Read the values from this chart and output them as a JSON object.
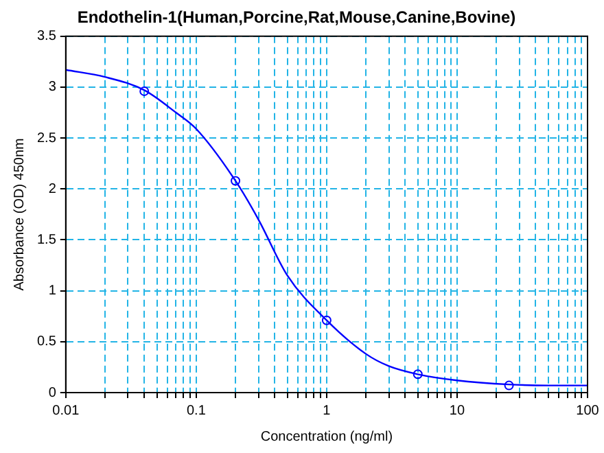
{
  "chart_data": {
    "type": "scatter",
    "title": "Endothelin-1(Human,Porcine,Rat,Mouse,Canine,Bovine)",
    "xlabel": "Concentration (ng/ml)",
    "ylabel": "Absorbance (OD) 450nm",
    "log": "x",
    "grid": true,
    "legend": false,
    "marker": "circle",
    "xlim": [
      0.01,
      100
    ],
    "xticks": [
      0.01,
      {
        "value": 0.02,
        "label": null
      },
      {
        "value": 0.03,
        "label": null
      },
      {
        "value": 0.04,
        "label": null
      },
      {
        "value": 0.05,
        "label": null
      },
      {
        "value": 0.06,
        "label": null
      },
      {
        "value": 0.07,
        "label": null
      },
      {
        "value": 0.08,
        "label": null
      },
      {
        "value": 0.09,
        "label": null
      },
      0.1,
      {
        "value": 0.2,
        "label": null
      },
      {
        "value": 0.3,
        "label": null
      },
      {
        "value": 0.4,
        "label": null
      },
      {
        "value": 0.5,
        "label": null
      },
      {
        "value": 0.6,
        "label": null
      },
      {
        "value": 0.7,
        "label": null
      },
      {
        "value": 0.8,
        "label": null
      },
      {
        "value": 0.9,
        "label": null
      },
      1,
      {
        "value": 2,
        "label": null
      },
      {
        "value": 3,
        "label": null
      },
      {
        "value": 4,
        "label": null
      },
      {
        "value": 5,
        "label": null
      },
      {
        "value": 6,
        "label": null
      },
      {
        "value": 7,
        "label": null
      },
      {
        "value": 8,
        "label": null
      },
      {
        "value": 9,
        "label": null
      },
      10,
      {
        "value": 20,
        "label": null
      },
      {
        "value": 30,
        "label": null
      },
      {
        "value": 40,
        "label": null
      },
      {
        "value": 50,
        "label": null
      },
      {
        "value": 60,
        "label": null
      },
      {
        "value": 70,
        "label": null
      },
      {
        "value": 80,
        "label": null
      },
      {
        "value": 90,
        "label": null
      },
      100
    ],
    "ylim": [
      0,
      3.5
    ],
    "yticks": [
      0,
      0.5,
      1,
      1.5,
      2,
      2.5,
      3,
      3.5
    ],
    "series": [
      {
        "type": "line",
        "marker": "none",
        "color": "#0000ff",
        "x": [
          0.01,
          0.02,
          0.04,
          0.07,
          0.1,
          0.2,
          0.3,
          0.5,
          1,
          2,
          3,
          5,
          10,
          25,
          50,
          100
        ],
        "values": [
          3.17,
          3.1,
          2.97,
          2.75,
          2.59,
          2.08,
          1.7,
          1.15,
          0.71,
          0.38,
          0.26,
          0.18,
          0.12,
          0.08,
          0.07,
          0.07
        ]
      },
      {
        "color": "#0000ff",
        "x": [
          0.04,
          0.2,
          1,
          5,
          25
        ],
        "values": [
          2.96,
          2.08,
          0.71,
          0.18,
          0.07
        ]
      }
    ]
  }
}
